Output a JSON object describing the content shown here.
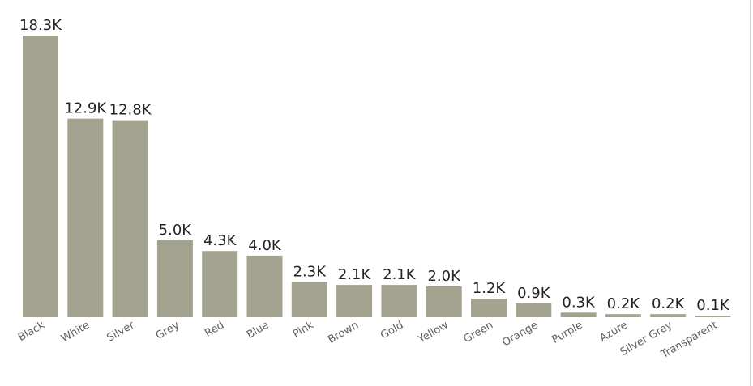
{
  "chart_data": {
    "type": "bar",
    "categories": [
      "Black",
      "White",
      "Silver",
      "Grey",
      "Red",
      "Blue",
      "Pink",
      "Brown",
      "Gold",
      "Yellow",
      "Green",
      "Orange",
      "Purple",
      "Azure",
      "Silver Grey",
      "Transparent"
    ],
    "values": [
      18300,
      12900,
      12800,
      5000,
      4300,
      4000,
      2300,
      2100,
      2100,
      2000,
      1200,
      900,
      300,
      200,
      200,
      100
    ],
    "value_labels": [
      "18.3K",
      "12.9K",
      "12.8K",
      "5.0K",
      "4.3K",
      "4.0K",
      "2.3K",
      "2.1K",
      "2.1K",
      "2.0K",
      "1.2K",
      "0.9K",
      "0.3K",
      "0.2K",
      "0.2K",
      "0.1K"
    ],
    "title": "",
    "xlabel": "",
    "ylabel": "",
    "ylim": [
      0,
      18300
    ],
    "grid": false,
    "legend": "none",
    "bar_color": "#a3a38f"
  }
}
